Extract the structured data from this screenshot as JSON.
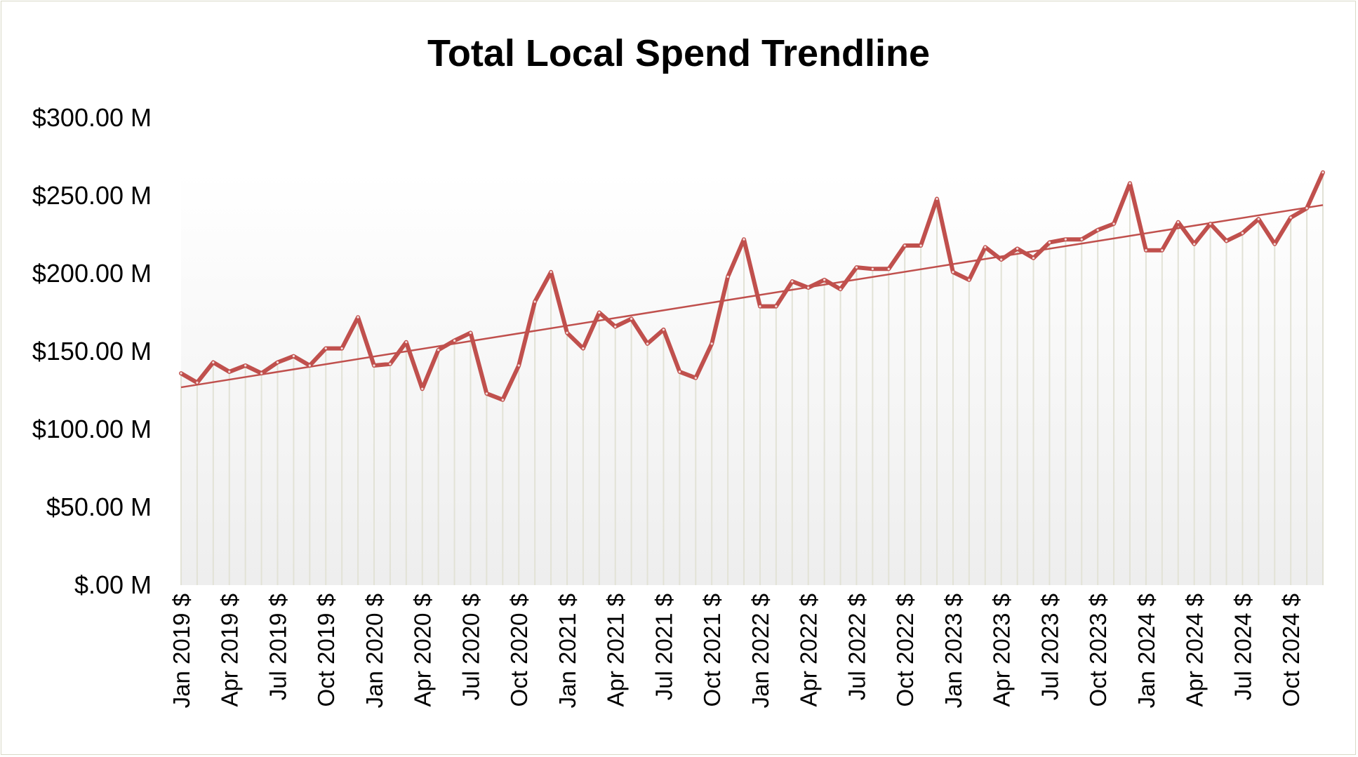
{
  "chart_data": {
    "type": "line",
    "title": "Total Local Spend Trendline",
    "xlabel": "",
    "ylabel": "",
    "ylim": [
      0,
      300
    ],
    "y_ticks": [
      0,
      50,
      100,
      150,
      200,
      250,
      300
    ],
    "y_tick_labels": [
      "$.00 M",
      "$50.00 M",
      "$100.00 M",
      "$150.00 M",
      "$200.00 M",
      "$250.00 M",
      "$300.00 M"
    ],
    "x_tick_labels": [
      {
        "index": 0,
        "label": "Jan 2019 $"
      },
      {
        "index": 3,
        "label": "Apr 2019 $"
      },
      {
        "index": 6,
        "label": "Jul 2019 $"
      },
      {
        "index": 9,
        "label": "Oct 2019 $"
      },
      {
        "index": 12,
        "label": "Jan 2020 $"
      },
      {
        "index": 15,
        "label": "Apr 2020 $"
      },
      {
        "index": 18,
        "label": "Jul 2020 $"
      },
      {
        "index": 21,
        "label": "Oct 2020 $"
      },
      {
        "index": 24,
        "label": "Jan 2021 $"
      },
      {
        "index": 27,
        "label": "Apr 2021 $"
      },
      {
        "index": 30,
        "label": "Jul 2021 $"
      },
      {
        "index": 33,
        "label": "Oct 2021 $"
      },
      {
        "index": 36,
        "label": "Jan 2022 $"
      },
      {
        "index": 39,
        "label": "Apr 2022 $"
      },
      {
        "index": 42,
        "label": "Jul 2022 $"
      },
      {
        "index": 45,
        "label": "Oct 2022 $"
      },
      {
        "index": 48,
        "label": "Jan 2023 $"
      },
      {
        "index": 51,
        "label": "Apr 2023 $"
      },
      {
        "index": 54,
        "label": "Jul 2023 $"
      },
      {
        "index": 57,
        "label": "Oct 2023 $"
      },
      {
        "index": 60,
        "label": "Jan 2024 $"
      },
      {
        "index": 63,
        "label": "Apr 2024 $"
      },
      {
        "index": 66,
        "label": "Jul 2024 $"
      },
      {
        "index": 69,
        "label": "Oct 2024 $"
      }
    ],
    "series": [
      {
        "name": "Total Local Spend",
        "color": "#c0504d",
        "values": [
          136,
          130,
          143,
          137,
          141,
          136,
          143,
          147,
          141,
          152,
          152,
          172,
          141,
          142,
          156,
          126,
          151,
          157,
          162,
          123,
          119,
          141,
          182,
          201,
          162,
          152,
          175,
          166,
          171,
          155,
          164,
          137,
          133,
          155,
          198,
          222,
          179,
          179,
          195,
          191,
          196,
          190,
          204,
          203,
          203,
          218,
          218,
          248,
          201,
          196,
          217,
          209,
          216,
          210,
          220,
          222,
          222,
          228,
          232,
          258,
          215,
          215,
          233,
          219,
          232,
          221,
          226,
          235,
          219,
          236,
          242,
          265
        ]
      },
      {
        "name": "Trendline",
        "type": "linear-trend",
        "color": "#c0504d",
        "start_value": 127,
        "end_value": 244
      }
    ],
    "grid": false,
    "legend": "none"
  }
}
